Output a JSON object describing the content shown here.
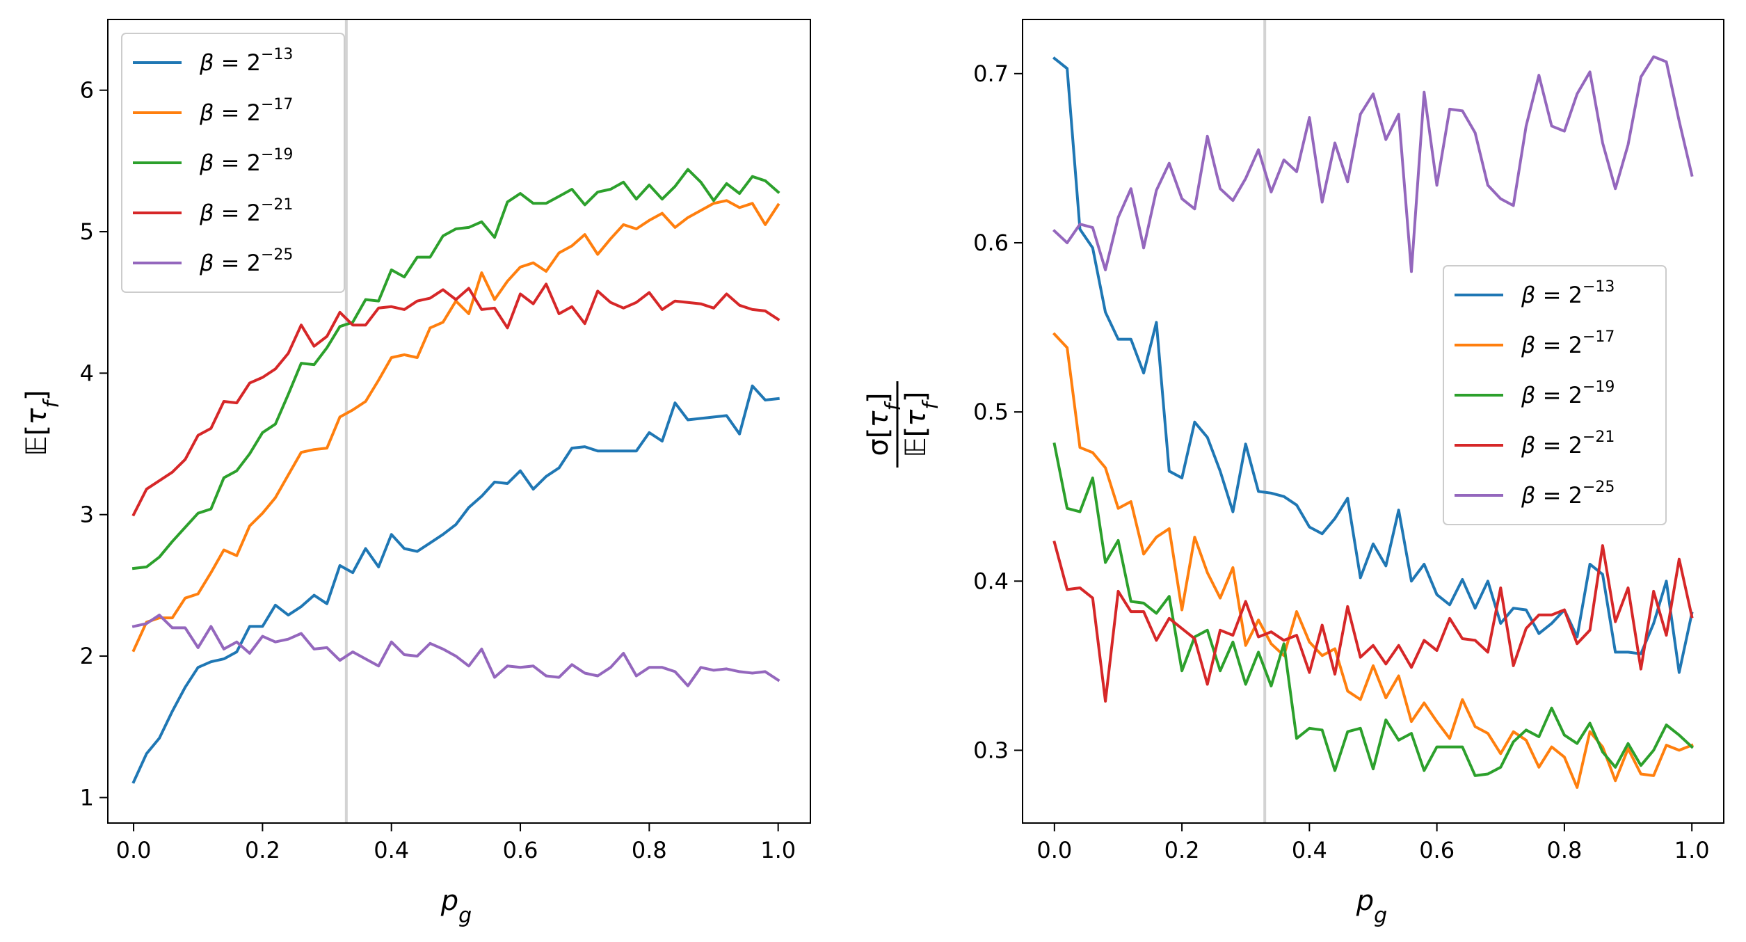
{
  "chart_data": [
    {
      "type": "line",
      "title": "",
      "xlabel": "p_g",
      "ylabel": "𝔼[τ_f]",
      "xlim": [
        -0.04,
        1.05
      ],
      "ylim": [
        0.82,
        6.5
      ],
      "xticks": [
        0.0,
        0.2,
        0.4,
        0.6,
        0.8,
        1.0
      ],
      "xtick_labels": [
        "0.0",
        "0.2",
        "0.4",
        "0.6",
        "0.8",
        "1.0"
      ],
      "yticks": [
        1,
        2,
        3,
        4,
        5,
        6
      ],
      "ytick_labels": [
        "1",
        "2",
        "3",
        "4",
        "5",
        "6"
      ],
      "vline": 0.33,
      "legend_position": "top-left",
      "x": [
        0.0,
        0.02,
        0.04,
        0.06,
        0.08,
        0.1,
        0.12,
        0.14,
        0.16,
        0.18,
        0.2,
        0.22,
        0.24,
        0.26,
        0.28,
        0.3,
        0.32,
        0.34,
        0.36,
        0.38,
        0.4,
        0.42,
        0.44,
        0.46,
        0.48,
        0.5,
        0.52,
        0.54,
        0.56,
        0.58,
        0.6,
        0.62,
        0.64,
        0.66,
        0.68,
        0.7,
        0.72,
        0.74,
        0.76,
        0.78,
        0.8,
        0.82,
        0.84,
        0.86,
        0.88,
        0.9,
        0.92,
        0.94,
        0.96,
        0.98,
        1.0
      ],
      "series": [
        {
          "name": "β = 2",
          "exp": "−13",
          "color": "#1f77b4",
          "values": [
            1.11,
            1.31,
            1.42,
            1.61,
            1.78,
            1.92,
            1.96,
            1.98,
            2.03,
            2.21,
            2.21,
            2.36,
            2.29,
            2.35,
            2.43,
            2.37,
            2.64,
            2.59,
            2.76,
            2.63,
            2.86,
            2.76,
            2.74,
            2.8,
            2.86,
            2.93,
            3.05,
            3.13,
            3.23,
            3.22,
            3.31,
            3.18,
            3.27,
            3.33,
            3.47,
            3.48,
            3.45,
            3.45,
            3.45,
            3.45,
            3.58,
            3.52,
            3.79,
            3.67,
            3.68,
            3.69,
            3.7,
            3.57,
            3.91,
            3.81,
            3.82
          ]
        },
        {
          "name": "β = 2",
          "exp": "−17",
          "color": "#ff7f0e",
          "values": [
            2.04,
            2.24,
            2.27,
            2.27,
            2.41,
            2.44,
            2.59,
            2.75,
            2.71,
            2.92,
            3.01,
            3.12,
            3.28,
            3.44,
            3.46,
            3.47,
            3.69,
            3.74,
            3.8,
            3.95,
            4.11,
            4.13,
            4.11,
            4.32,
            4.36,
            4.51,
            4.42,
            4.71,
            4.52,
            4.65,
            4.75,
            4.78,
            4.72,
            4.85,
            4.9,
            4.98,
            4.84,
            4.95,
            5.05,
            5.02,
            5.08,
            5.13,
            5.03,
            5.1,
            5.15,
            5.2,
            5.22,
            5.17,
            5.2,
            5.05,
            5.19
          ]
        },
        {
          "name": "β = 2",
          "exp": "−19",
          "color": "#2ca02c",
          "values": [
            2.62,
            2.63,
            2.7,
            2.81,
            2.91,
            3.01,
            3.04,
            3.26,
            3.31,
            3.43,
            3.58,
            3.64,
            3.85,
            4.07,
            4.06,
            4.18,
            4.33,
            4.36,
            4.52,
            4.51,
            4.73,
            4.68,
            4.82,
            4.82,
            4.97,
            5.02,
            5.03,
            5.07,
            4.96,
            5.21,
            5.27,
            5.2,
            5.2,
            5.25,
            5.3,
            5.19,
            5.28,
            5.3,
            5.35,
            5.23,
            5.33,
            5.23,
            5.32,
            5.44,
            5.35,
            5.22,
            5.34,
            5.27,
            5.39,
            5.36,
            5.28
          ]
        },
        {
          "name": "β = 2",
          "exp": "−21",
          "color": "#d62728",
          "values": [
            3.0,
            3.18,
            3.24,
            3.3,
            3.39,
            3.56,
            3.61,
            3.8,
            3.79,
            3.93,
            3.97,
            4.03,
            4.14,
            4.34,
            4.19,
            4.26,
            4.43,
            4.34,
            4.34,
            4.46,
            4.47,
            4.45,
            4.51,
            4.53,
            4.59,
            4.52,
            4.6,
            4.45,
            4.46,
            4.32,
            4.56,
            4.49,
            4.63,
            4.42,
            4.47,
            4.35,
            4.58,
            4.5,
            4.46,
            4.5,
            4.57,
            4.45,
            4.51,
            4.5,
            4.49,
            4.46,
            4.56,
            4.48,
            4.45,
            4.44,
            4.38
          ]
        },
        {
          "name": "β = 2",
          "exp": "−25",
          "color": "#9467bd",
          "values": [
            2.21,
            2.23,
            2.29,
            2.2,
            2.2,
            2.06,
            2.21,
            2.05,
            2.1,
            2.02,
            2.14,
            2.1,
            2.12,
            2.16,
            2.05,
            2.06,
            1.97,
            2.03,
            1.98,
            1.93,
            2.1,
            2.01,
            2.0,
            2.09,
            2.05,
            2.0,
            1.93,
            2.05,
            1.85,
            1.93,
            1.92,
            1.93,
            1.86,
            1.85,
            1.94,
            1.88,
            1.86,
            1.92,
            2.02,
            1.86,
            1.92,
            1.92,
            1.89,
            1.79,
            1.92,
            1.9,
            1.91,
            1.89,
            1.88,
            1.89,
            1.83
          ]
        }
      ]
    },
    {
      "type": "line",
      "title": "",
      "xlabel": "p_g",
      "ylabel": "σ[τ_f] / 𝔼[τ_f]",
      "xlim": [
        -0.05,
        1.05
      ],
      "ylim": [
        0.257,
        0.732
      ],
      "xticks": [
        0.0,
        0.2,
        0.4,
        0.6,
        0.8,
        1.0
      ],
      "xtick_labels": [
        "0.0",
        "0.2",
        "0.4",
        "0.6",
        "0.8",
        "1.0"
      ],
      "yticks": [
        0.3,
        0.4,
        0.5,
        0.6,
        0.7
      ],
      "ytick_labels": [
        "0.3",
        "0.4",
        "0.5",
        "0.6",
        "0.7"
      ],
      "vline": 0.33,
      "legend_position": "center-right",
      "x": [
        0.0,
        0.02,
        0.04,
        0.06,
        0.08,
        0.1,
        0.12,
        0.14,
        0.16,
        0.18,
        0.2,
        0.22,
        0.24,
        0.26,
        0.28,
        0.3,
        0.32,
        0.34,
        0.36,
        0.38,
        0.4,
        0.42,
        0.44,
        0.46,
        0.48,
        0.5,
        0.52,
        0.54,
        0.56,
        0.58,
        0.6,
        0.62,
        0.64,
        0.66,
        0.68,
        0.7,
        0.72,
        0.74,
        0.76,
        0.78,
        0.8,
        0.82,
        0.84,
        0.86,
        0.88,
        0.9,
        0.92,
        0.94,
        0.96,
        0.98,
        1.0
      ],
      "series": [
        {
          "name": "β = 2",
          "exp": "−13",
          "color": "#1f77b4",
          "values": [
            0.709,
            0.703,
            0.608,
            0.597,
            0.559,
            0.543,
            0.543,
            0.523,
            0.553,
            0.465,
            0.461,
            0.494,
            0.485,
            0.465,
            0.441,
            0.481,
            0.453,
            0.452,
            0.45,
            0.445,
            0.432,
            0.428,
            0.437,
            0.449,
            0.402,
            0.422,
            0.409,
            0.442,
            0.4,
            0.41,
            0.392,
            0.386,
            0.401,
            0.384,
            0.4,
            0.375,
            0.384,
            0.383,
            0.369,
            0.375,
            0.383,
            0.367,
            0.41,
            0.404,
            0.358,
            0.358,
            0.357,
            0.375,
            0.4,
            0.346,
            0.381
          ]
        },
        {
          "name": "β = 2",
          "exp": "−17",
          "color": "#ff7f0e",
          "values": [
            0.546,
            0.538,
            0.479,
            0.476,
            0.467,
            0.443,
            0.447,
            0.416,
            0.426,
            0.431,
            0.383,
            0.426,
            0.405,
            0.39,
            0.408,
            0.362,
            0.377,
            0.363,
            0.356,
            0.382,
            0.364,
            0.356,
            0.36,
            0.335,
            0.33,
            0.35,
            0.331,
            0.344,
            0.317,
            0.328,
            0.317,
            0.307,
            0.33,
            0.314,
            0.31,
            0.298,
            0.311,
            0.306,
            0.29,
            0.302,
            0.296,
            0.278,
            0.311,
            0.302,
            0.282,
            0.301,
            0.286,
            0.285,
            0.303,
            0.3,
            0.303
          ]
        },
        {
          "name": "β = 2",
          "exp": "−19",
          "color": "#2ca02c",
          "values": [
            0.481,
            0.443,
            0.441,
            0.461,
            0.411,
            0.424,
            0.388,
            0.387,
            0.381,
            0.391,
            0.347,
            0.367,
            0.371,
            0.347,
            0.364,
            0.339,
            0.358,
            0.338,
            0.363,
            0.307,
            0.313,
            0.312,
            0.288,
            0.311,
            0.313,
            0.289,
            0.318,
            0.306,
            0.31,
            0.288,
            0.302,
            0.302,
            0.302,
            0.285,
            0.286,
            0.29,
            0.305,
            0.312,
            0.308,
            0.325,
            0.309,
            0.304,
            0.316,
            0.299,
            0.29,
            0.304,
            0.291,
            0.3,
            0.315,
            0.309,
            0.302
          ]
        },
        {
          "name": "β = 2",
          "exp": "−21",
          "color": "#d62728",
          "values": [
            0.423,
            0.395,
            0.396,
            0.39,
            0.329,
            0.394,
            0.382,
            0.382,
            0.365,
            0.378,
            0.372,
            0.366,
            0.339,
            0.371,
            0.368,
            0.388,
            0.367,
            0.37,
            0.365,
            0.368,
            0.346,
            0.374,
            0.345,
            0.385,
            0.355,
            0.362,
            0.351,
            0.362,
            0.349,
            0.365,
            0.359,
            0.378,
            0.366,
            0.365,
            0.358,
            0.396,
            0.35,
            0.372,
            0.38,
            0.38,
            0.383,
            0.363,
            0.371,
            0.421,
            0.376,
            0.396,
            0.348,
            0.394,
            0.368,
            0.413,
            0.379
          ]
        },
        {
          "name": "β = 2",
          "exp": "−25",
          "color": "#9467bd",
          "values": [
            0.607,
            0.6,
            0.611,
            0.609,
            0.584,
            0.615,
            0.632,
            0.597,
            0.631,
            0.647,
            0.626,
            0.62,
            0.663,
            0.632,
            0.625,
            0.638,
            0.655,
            0.63,
            0.649,
            0.642,
            0.674,
            0.624,
            0.659,
            0.636,
            0.676,
            0.688,
            0.661,
            0.676,
            0.583,
            0.689,
            0.634,
            0.679,
            0.678,
            0.665,
            0.634,
            0.626,
            0.622,
            0.669,
            0.699,
            0.669,
            0.666,
            0.688,
            0.701,
            0.659,
            0.632,
            0.658,
            0.698,
            0.71,
            0.707,
            0.672,
            0.64
          ]
        }
      ]
    }
  ]
}
